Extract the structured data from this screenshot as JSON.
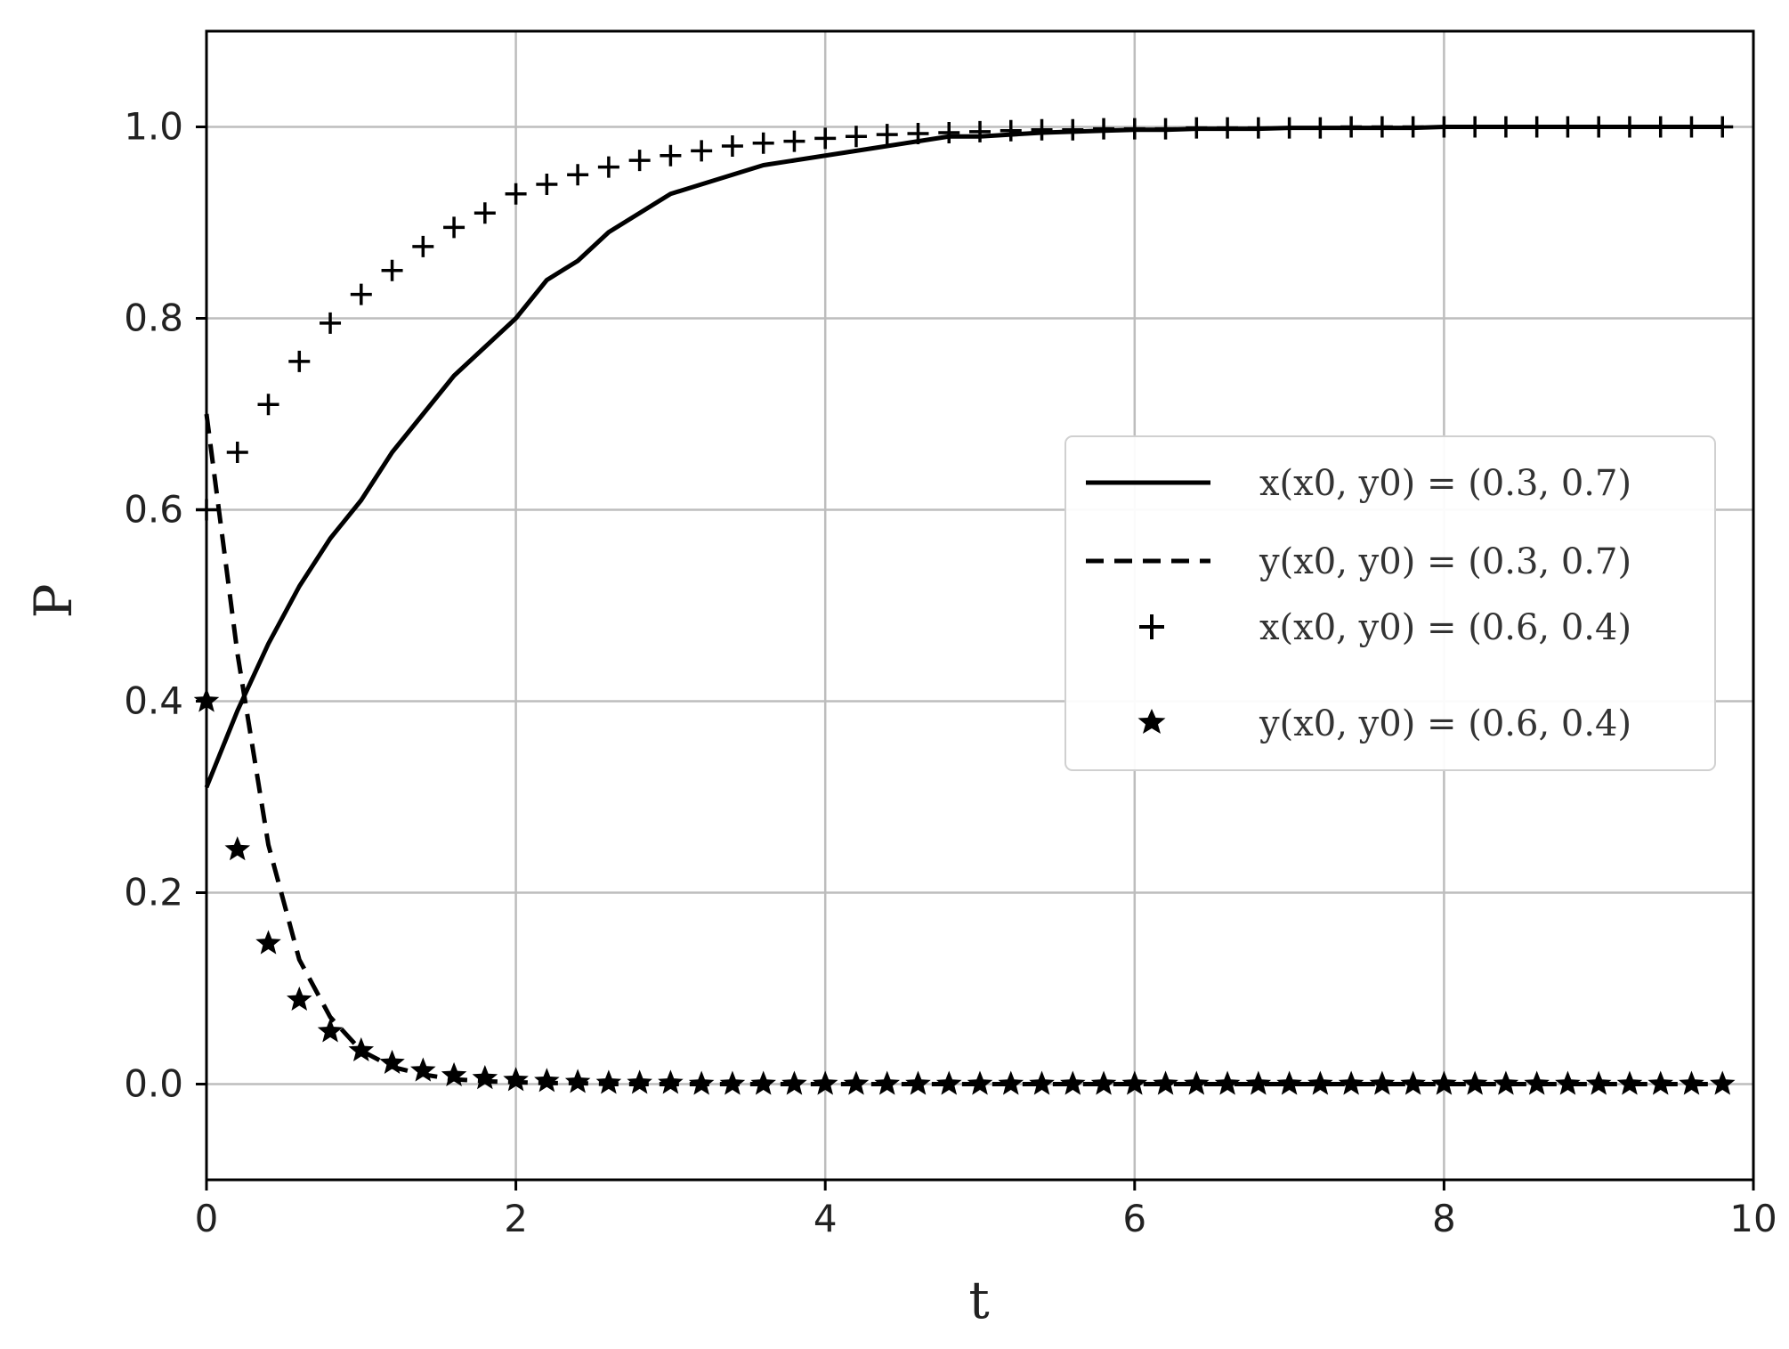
{
  "chart_data": {
    "type": "line",
    "title": "",
    "xlabel": "t",
    "ylabel": "P",
    "xlim": [
      0,
      10
    ],
    "ylim": [
      -0.1,
      1.1
    ],
    "xticks": [
      0,
      2,
      4,
      6,
      8,
      10
    ],
    "xtick_labels": [
      "0",
      "2",
      "4",
      "6",
      "8",
      "10"
    ],
    "yticks": [
      0.0,
      0.2,
      0.4,
      0.6,
      0.8,
      1.0
    ],
    "ytick_labels": [
      "0.0",
      "0.2",
      "0.4",
      "0.6",
      "0.8",
      "1.0"
    ],
    "grid": true,
    "legend_position": "center-right",
    "colors": {
      "series": "#000000",
      "grid": "#bdbdbd",
      "axes": "#000000"
    },
    "x": [
      0.0,
      0.2,
      0.4,
      0.6,
      0.8,
      1.0,
      1.2,
      1.4,
      1.6,
      1.8,
      2.0,
      2.2,
      2.4,
      2.6,
      2.8,
      3.0,
      3.2,
      3.4,
      3.6,
      3.8,
      4.0,
      4.2,
      4.4,
      4.6,
      4.8,
      5.0,
      5.2,
      5.4,
      5.6,
      5.8,
      6.0,
      6.2,
      6.4,
      6.6,
      6.8,
      7.0,
      7.2,
      7.4,
      7.6,
      7.8,
      8.0,
      8.2,
      8.4,
      8.6,
      8.8,
      9.0,
      9.2,
      9.4,
      9.6,
      9.8
    ],
    "series": [
      {
        "name": "x(x0, y0) = (0.3, 0.7)",
        "style": "solid",
        "values": [
          0.31,
          0.39,
          0.46,
          0.52,
          0.57,
          0.61,
          0.66,
          0.7,
          0.74,
          0.77,
          0.8,
          0.84,
          0.86,
          0.89,
          0.91,
          0.93,
          0.94,
          0.95,
          0.96,
          0.965,
          0.97,
          0.975,
          0.98,
          0.985,
          0.99,
          0.99,
          0.992,
          0.994,
          0.995,
          0.996,
          0.997,
          0.997,
          0.998,
          0.998,
          0.998,
          0.999,
          0.999,
          0.999,
          0.999,
          0.999,
          1.0,
          1.0,
          1.0,
          1.0,
          1.0,
          1.0,
          1.0,
          1.0,
          1.0,
          1.0
        ]
      },
      {
        "name": "y(x0, y0) = (0.3, 0.7)",
        "style": "dashed",
        "values": [
          0.7,
          0.45,
          0.25,
          0.13,
          0.07,
          0.035,
          0.018,
          0.01,
          0.005,
          0.003,
          0.002,
          0.001,
          0.001,
          0.0,
          0.0,
          0.0,
          0.0,
          0.0,
          0.0,
          0.0,
          0.0,
          0.0,
          0.0,
          0.0,
          0.0,
          0.0,
          0.0,
          0.0,
          0.0,
          0.0,
          0.0,
          0.0,
          0.0,
          0.0,
          0.0,
          0.0,
          0.0,
          0.0,
          0.0,
          0.0,
          0.0,
          0.0,
          0.0,
          0.0,
          0.0,
          0.0,
          0.0,
          0.0,
          0.0,
          0.0
        ]
      },
      {
        "name": "x(x0, y0) = (0.6, 0.4)",
        "style": "plus-marker",
        "values": [
          0.6,
          0.66,
          0.71,
          0.755,
          0.795,
          0.825,
          0.85,
          0.875,
          0.895,
          0.91,
          0.93,
          0.94,
          0.95,
          0.958,
          0.965,
          0.97,
          0.975,
          0.98,
          0.983,
          0.985,
          0.988,
          0.99,
          0.992,
          0.993,
          0.994,
          0.995,
          0.996,
          0.997,
          0.997,
          0.998,
          0.998,
          0.998,
          0.999,
          0.999,
          0.999,
          0.999,
          0.999,
          1.0,
          1.0,
          1.0,
          1.0,
          1.0,
          1.0,
          1.0,
          1.0,
          1.0,
          1.0,
          1.0,
          1.0,
          1.0
        ]
      },
      {
        "name": "y(x0, y0) = (0.6, 0.4)",
        "style": "star-marker",
        "values": [
          0.4,
          0.245,
          0.147,
          0.088,
          0.055,
          0.035,
          0.022,
          0.014,
          0.009,
          0.006,
          0.004,
          0.003,
          0.002,
          0.001,
          0.001,
          0.001,
          0.0,
          0.0,
          0.0,
          0.0,
          0.0,
          0.0,
          0.0,
          0.0,
          0.0,
          0.0,
          0.0,
          0.0,
          0.0,
          0.0,
          0.0,
          0.0,
          0.0,
          0.0,
          0.0,
          0.0,
          0.0,
          0.0,
          0.0,
          0.0,
          0.0,
          0.0,
          0.0,
          0.0,
          0.0,
          0.0,
          0.0,
          0.0,
          0.0,
          0.0
        ]
      }
    ]
  }
}
